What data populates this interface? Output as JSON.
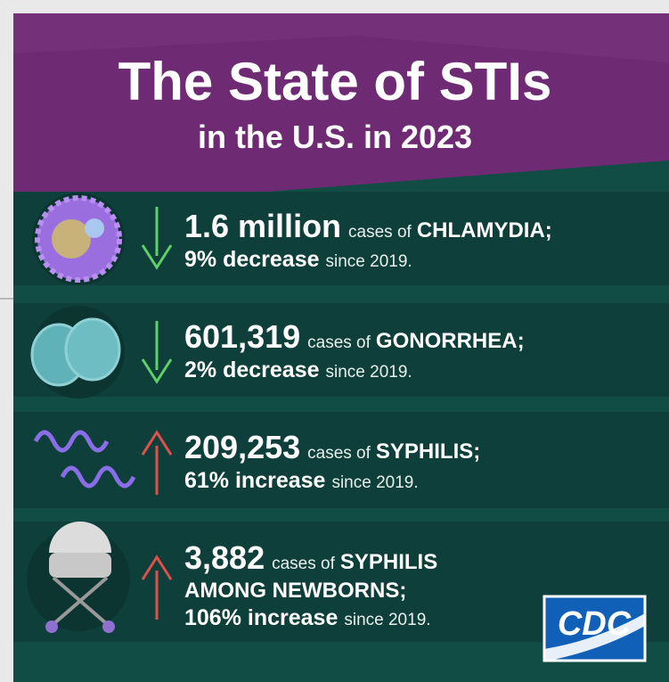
{
  "header": {
    "title": "The State of STIs",
    "subtitle": "in the U.S. in 2023"
  },
  "items": [
    {
      "number": "1.6 million",
      "cases": "cases of",
      "disease": "CHLAMYDIA;",
      "change": "9% decrease",
      "since": "since 2019."
    },
    {
      "number": "601,319",
      "cases": "cases of",
      "disease": "GONORRHEA;",
      "change": "2% decrease",
      "since": "since 2019."
    },
    {
      "number": "209,253",
      "cases": "cases of",
      "disease": "SYPHILIS;",
      "change": "61% increase",
      "since": "since 2019."
    },
    {
      "number": "3,882",
      "cases": "cases of",
      "disease": "SYPHILIS",
      "disease_line2": "AMONG NEWBORNS;",
      "change": "106% increase",
      "since": "since 2019."
    }
  ],
  "logo": "CDC"
}
